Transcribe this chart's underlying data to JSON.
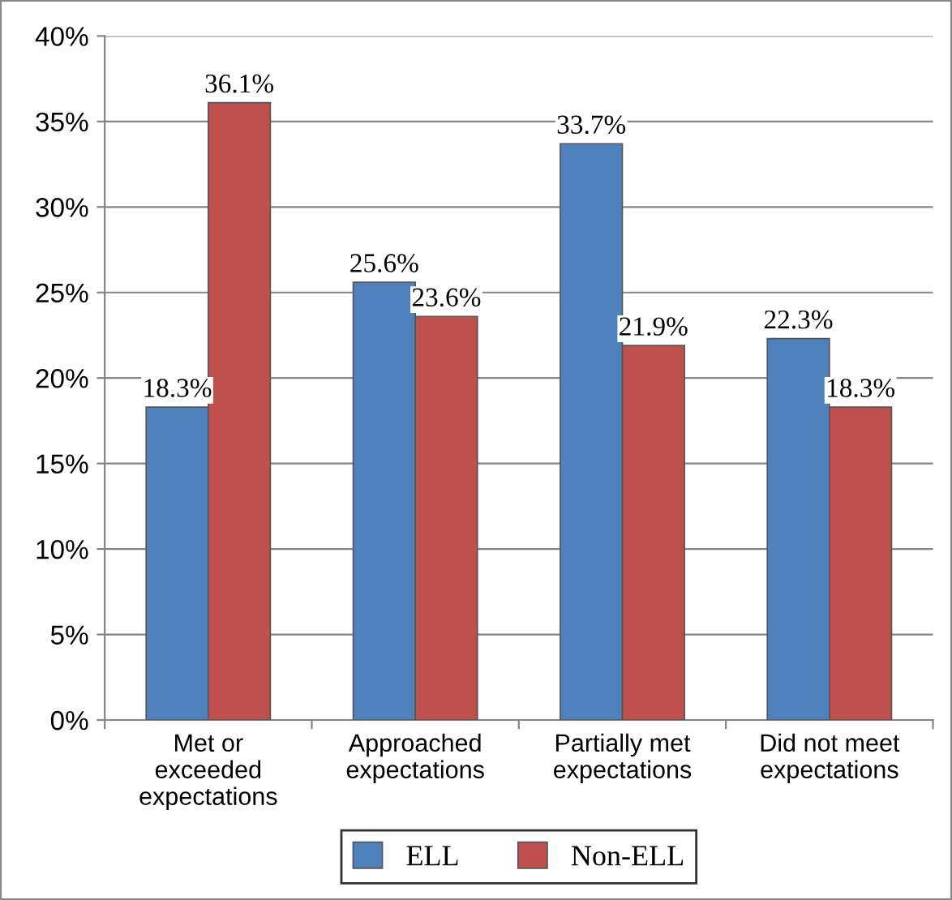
{
  "chart_data": {
    "type": "bar",
    "categories": [
      "Met or\nexceeded\nexpectations",
      "Approached\nexpectations",
      "Partially met\nexpectations",
      "Did not meet\nexpectations"
    ],
    "series": [
      {
        "name": "ELL",
        "color": "#4f81bd",
        "values": [
          18.3,
          25.6,
          33.7,
          22.3
        ],
        "value_labels": [
          "18.3%",
          "25.6%",
          "33.7%",
          "22.3%"
        ]
      },
      {
        "name": "Non-ELL",
        "color": "#c0504d",
        "values": [
          36.1,
          23.6,
          21.9,
          18.3
        ],
        "value_labels": [
          "36.1%",
          "23.6%",
          "21.9%",
          "18.3%"
        ]
      }
    ],
    "ylim": [
      0,
      40
    ],
    "yticks": [
      {
        "value": 0,
        "label": "0%"
      },
      {
        "value": 5,
        "label": "5%"
      },
      {
        "value": 10,
        "label": "10%"
      },
      {
        "value": 15,
        "label": "15%"
      },
      {
        "value": 20,
        "label": "20%"
      },
      {
        "value": 25,
        "label": "25%"
      },
      {
        "value": 30,
        "label": "30%"
      },
      {
        "value": 35,
        "label": "35%"
      },
      {
        "value": 40,
        "label": "40%"
      }
    ],
    "grid": "y",
    "legend": "bottom"
  }
}
